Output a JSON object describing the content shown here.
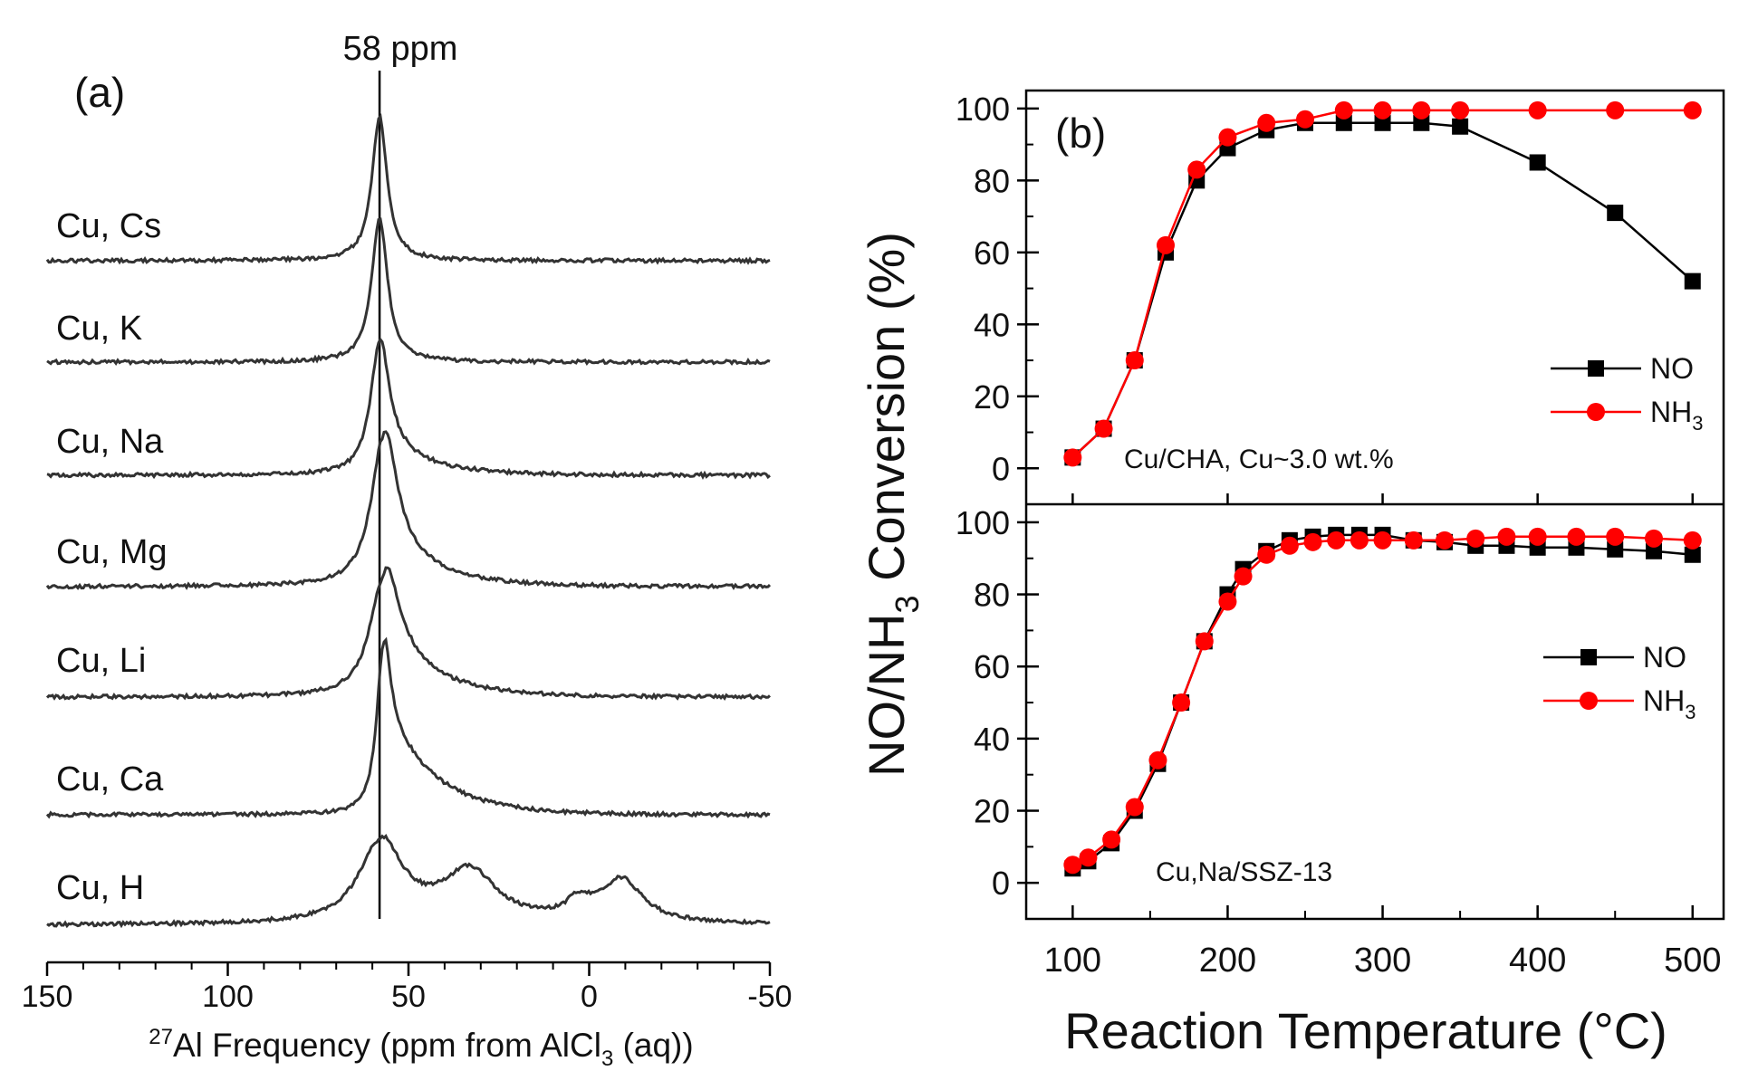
{
  "colors": {
    "axis": "#000000",
    "trace": "#333333",
    "no": "#000000",
    "nh3": "#ff0000"
  },
  "chart_data": [
    {
      "type": "line",
      "panel_label": "(a)",
      "title": "",
      "annotation": "58 ppm",
      "marker_ppm": 58,
      "xlabel_sup": "27",
      "xlabel_main": "Al Frequency (ppm from AlCl",
      "xlabel_sub": "3",
      "xlabel_end": " (aq))",
      "xlim": [
        150,
        -50
      ],
      "xticks": [
        150,
        100,
        50,
        0,
        -50
      ],
      "xtick_labels": [
        "150",
        "100",
        "50",
        "0",
        "-50"
      ],
      "spectra": [
        {
          "name": "Cu, Cs",
          "components": [
            {
              "center": 58,
              "width": 2.5,
              "height": 1.0,
              "tail": 0
            }
          ]
        },
        {
          "name": "Cu, K",
          "components": [
            {
              "center": 58,
              "width": 2.6,
              "height": 1.0,
              "tail": 0
            }
          ]
        },
        {
          "name": "Cu, Na",
          "components": [
            {
              "center": 58,
              "width": 3.0,
              "height": 0.92,
              "tail": 0.22
            }
          ]
        },
        {
          "name": "Cu, Mg",
          "components": [
            {
              "center": 57,
              "width": 4.0,
              "height": 1.03,
              "tail": 0.3
            }
          ]
        },
        {
          "name": "Cu, Li",
          "components": [
            {
              "center": 57,
              "width": 4.5,
              "height": 0.82,
              "tail": 0.45
            }
          ]
        },
        {
          "name": "Cu, Ca",
          "components": [
            {
              "center": 57,
              "width": 2.2,
              "height": 1.15,
              "tail": 0.6
            }
          ]
        },
        {
          "name": "Cu, H",
          "components": [
            {
              "center": 58,
              "width": 7,
              "height": 0.55,
              "tail": 0.15
            },
            {
              "center": 33,
              "width": 9,
              "height": 0.35,
              "tail": 0
            },
            {
              "center": -9,
              "width": 7,
              "height": 0.3,
              "tail": 0
            },
            {
              "center": 3,
              "width": 4,
              "height": 0.12,
              "tail": 0
            }
          ]
        }
      ]
    },
    {
      "type": "line",
      "panel_label": "(b)",
      "ylabel_main": "NO/NH",
      "ylabel_sub": "3",
      "ylabel_end": " Conversion (%)",
      "xlabel": "Reaction Temperature (°C)",
      "xlim": [
        70,
        520
      ],
      "xticks": [
        100,
        200,
        300,
        400,
        500
      ],
      "xtick_labels": [
        "100",
        "200",
        "300",
        "400",
        "500"
      ],
      "ylim": [
        -10,
        105
      ],
      "yticks": [
        0,
        20,
        40,
        60,
        80,
        100
      ],
      "ytick_labels": [
        "0",
        "20",
        "40",
        "60",
        "80",
        "100"
      ],
      "panels": [
        {
          "annotation": "Cu/CHA, Cu~3.0 wt.%",
          "legend_position": "right",
          "series": [
            {
              "name": "NO",
              "name_sub": "",
              "color": "#000000",
              "marker": "square",
              "x": [
                100,
                120,
                140,
                160,
                180,
                200,
                225,
                250,
                275,
                300,
                325,
                350,
                400,
                450,
                500
              ],
              "y": [
                3,
                11,
                30,
                60,
                80,
                89,
                94,
                96,
                96,
                96,
                96,
                95,
                85,
                71,
                52
              ]
            },
            {
              "name": "NH",
              "name_sub": "3",
              "color": "#ff0000",
              "marker": "circle",
              "x": [
                100,
                120,
                140,
                160,
                180,
                200,
                225,
                250,
                275,
                300,
                325,
                350,
                400,
                450,
                500
              ],
              "y": [
                3,
                11,
                30,
                62,
                83,
                92,
                96,
                97,
                99.5,
                99.5,
                99.5,
                99.5,
                99.5,
                99.5,
                99.5
              ]
            }
          ]
        },
        {
          "annotation": "Cu,Na/SSZ-13",
          "legend_position": "right",
          "series": [
            {
              "name": "NO",
              "name_sub": "",
              "color": "#000000",
              "marker": "square",
              "x": [
                100,
                110,
                125,
                140,
                155,
                170,
                185,
                200,
                210,
                225,
                240,
                255,
                270,
                285,
                300,
                320,
                340,
                360,
                380,
                400,
                425,
                450,
                475,
                500
              ],
              "y": [
                4,
                6,
                11,
                20,
                33,
                50,
                67,
                80,
                87,
                92,
                95,
                96,
                96.5,
                96.5,
                96.5,
                95,
                94.5,
                93.5,
                93.5,
                93,
                93,
                92.5,
                92,
                91
              ]
            },
            {
              "name": "NH",
              "name_sub": "3",
              "color": "#ff0000",
              "marker": "circle",
              "x": [
                100,
                110,
                125,
                140,
                155,
                170,
                185,
                200,
                210,
                225,
                240,
                255,
                270,
                285,
                300,
                320,
                340,
                360,
                380,
                400,
                425,
                450,
                475,
                500
              ],
              "y": [
                5,
                7,
                12,
                21,
                34,
                50,
                67,
                78,
                85,
                91,
                93.5,
                94.5,
                95,
                95,
                95,
                95,
                95,
                95.5,
                96,
                96,
                96,
                96,
                95.5,
                95
              ]
            }
          ]
        }
      ]
    }
  ]
}
